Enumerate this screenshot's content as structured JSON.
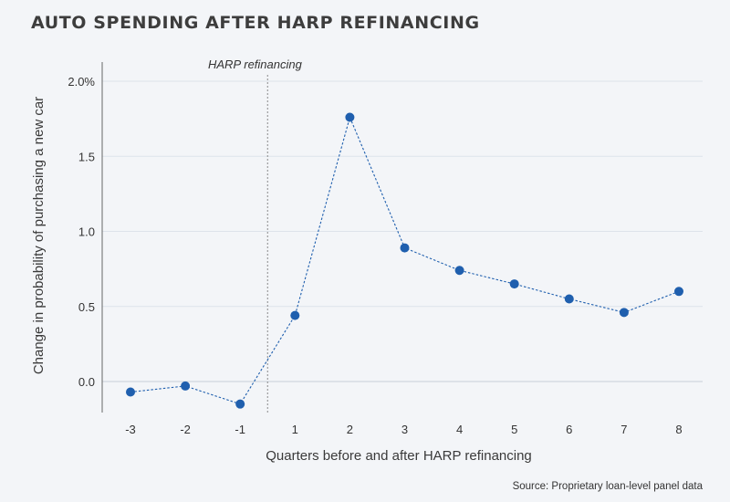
{
  "chart_data": {
    "type": "line",
    "title": "AUTO SPENDING AFTER HARP REFINANCING",
    "xlabel": "Quarters before and after HARP refinancing",
    "ylabel": "Change in probability of purchasing a new car",
    "categories": [
      "-3",
      "-2",
      "-1",
      "1",
      "2",
      "3",
      "4",
      "5",
      "6",
      "7",
      "8"
    ],
    "values": [
      -0.07,
      -0.03,
      -0.15,
      0.44,
      1.76,
      0.89,
      0.74,
      0.65,
      0.55,
      0.46,
      0.6
    ],
    "ylim": [
      -0.25,
      2.1
    ],
    "yticks": [
      "0.0",
      "0.5",
      "1.0",
      "1.5",
      "2.0%"
    ],
    "ytick_values": [
      0.0,
      0.5,
      1.0,
      1.5,
      2.0
    ],
    "annotation": "HARP refinancing",
    "source": "Source: Proprietary loan-level panel data",
    "grid": true,
    "colors": {
      "series": "#1f5fae",
      "grid": "#dde3ea",
      "refline": "#8a8a8a",
      "background": "#f3f5f8"
    }
  }
}
